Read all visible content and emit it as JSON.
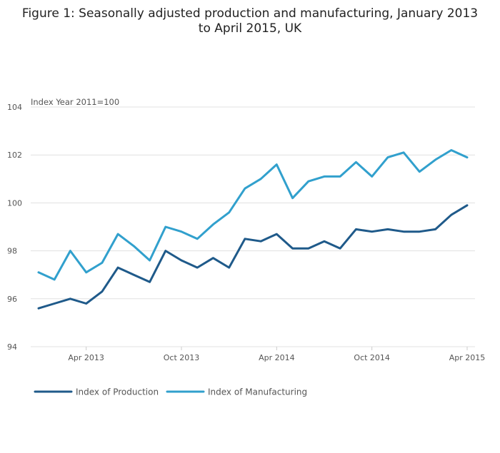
{
  "chart_data": {
    "type": "line",
    "title_line1": "Figure 1: Seasonally adjusted production and manufacturing, January 2013",
    "title_line2": "to April 2015, UK",
    "ylabel": "Index Year 2011=100",
    "xlabel": "",
    "ylim": [
      94,
      104
    ],
    "yticks": [
      94,
      96,
      98,
      100,
      102,
      104
    ],
    "x_start": "Jan 2013",
    "x_count": 28,
    "xticks": [
      {
        "index": 3,
        "label": "Apr 2013"
      },
      {
        "index": 9,
        "label": "Oct 2013"
      },
      {
        "index": 15,
        "label": "Apr 2014"
      },
      {
        "index": 21,
        "label": "Oct 2014"
      },
      {
        "index": 27,
        "label": "Apr 2015"
      }
    ],
    "grid": true,
    "legend_position": "bottom-left",
    "series": [
      {
        "name": "Index of Production",
        "color": "#1f5a8a",
        "values": [
          95.6,
          95.8,
          96.0,
          95.8,
          96.3,
          97.3,
          97.0,
          96.7,
          98.0,
          97.6,
          97.3,
          97.7,
          97.3,
          98.5,
          98.4,
          98.7,
          98.1,
          98.1,
          98.4,
          98.1,
          98.9,
          98.8,
          98.9,
          98.8,
          98.8,
          98.9,
          99.5,
          99.9
        ]
      },
      {
        "name": "Index of Manufacturing",
        "color": "#31a0cd",
        "values": [
          97.1,
          96.8,
          98.0,
          97.1,
          97.5,
          98.7,
          98.2,
          97.6,
          99.0,
          98.8,
          98.5,
          99.1,
          99.6,
          100.6,
          101.0,
          101.6,
          100.2,
          100.9,
          101.1,
          101.1,
          101.7,
          101.1,
          101.9,
          102.1,
          101.3,
          101.8,
          102.2,
          101.9
        ]
      }
    ]
  }
}
